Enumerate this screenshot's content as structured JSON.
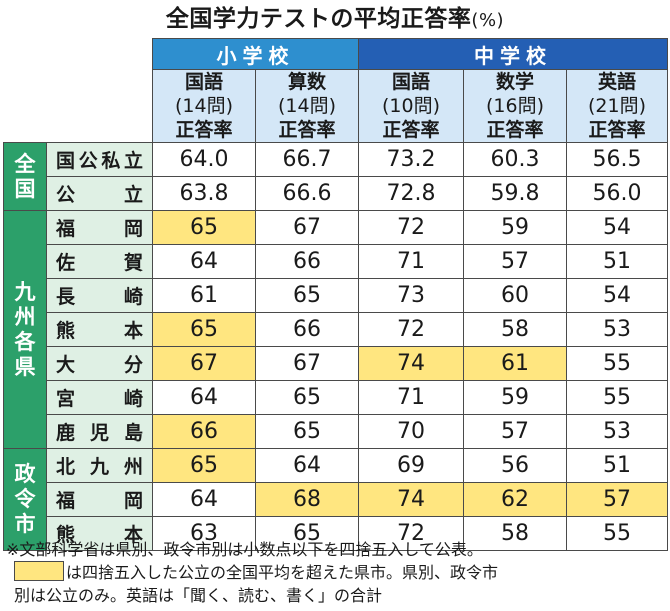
{
  "chart_data": {
    "type": "table",
    "title": "全国学力テストの平均正答率",
    "title_unit": "(%)",
    "level_headers": {
      "elementary": "小学校",
      "middle": "中学校"
    },
    "columns": [
      {
        "level": "小学校",
        "subject": "国語",
        "questions": "(14問)",
        "metric": "正答率"
      },
      {
        "level": "小学校",
        "subject": "算数",
        "questions": "(14問)",
        "metric": "正答率"
      },
      {
        "level": "中学校",
        "subject": "国語",
        "questions": "(10問)",
        "metric": "正答率"
      },
      {
        "level": "中学校",
        "subject": "数学",
        "questions": "(16問)",
        "metric": "正答率"
      },
      {
        "level": "中学校",
        "subject": "英語",
        "questions": "(21問)",
        "metric": "正答率"
      }
    ],
    "groups": [
      {
        "label": "全国",
        "rows": [
          {
            "name": "国公私立",
            "values": [
              "64.0",
              "66.7",
              "73.2",
              "60.3",
              "56.5"
            ],
            "highlight": [
              false,
              false,
              false,
              false,
              false
            ]
          },
          {
            "name": "公立",
            "values": [
              "63.8",
              "66.6",
              "72.8",
              "59.8",
              "56.0"
            ],
            "highlight": [
              false,
              false,
              false,
              false,
              false
            ]
          }
        ]
      },
      {
        "label": "九州各県",
        "rows": [
          {
            "name": "福岡",
            "values": [
              "65",
              "67",
              "72",
              "59",
              "54"
            ],
            "highlight": [
              true,
              false,
              false,
              false,
              false
            ]
          },
          {
            "name": "佐賀",
            "values": [
              "64",
              "66",
              "71",
              "57",
              "51"
            ],
            "highlight": [
              false,
              false,
              false,
              false,
              false
            ]
          },
          {
            "name": "長崎",
            "values": [
              "61",
              "65",
              "73",
              "60",
              "54"
            ],
            "highlight": [
              false,
              false,
              false,
              false,
              false
            ]
          },
          {
            "name": "熊本",
            "values": [
              "65",
              "66",
              "72",
              "58",
              "53"
            ],
            "highlight": [
              true,
              false,
              false,
              false,
              false
            ]
          },
          {
            "name": "大分",
            "values": [
              "67",
              "67",
              "74",
              "61",
              "55"
            ],
            "highlight": [
              true,
              false,
              true,
              true,
              false
            ]
          },
          {
            "name": "宮崎",
            "values": [
              "64",
              "65",
              "71",
              "59",
              "55"
            ],
            "highlight": [
              false,
              false,
              false,
              false,
              false
            ]
          },
          {
            "name": "鹿児島",
            "values": [
              "66",
              "65",
              "70",
              "57",
              "53"
            ],
            "highlight": [
              true,
              false,
              false,
              false,
              false
            ]
          }
        ]
      },
      {
        "label": "政令市",
        "rows": [
          {
            "name": "北九州",
            "values": [
              "65",
              "64",
              "69",
              "56",
              "51"
            ],
            "highlight": [
              true,
              false,
              false,
              false,
              false
            ]
          },
          {
            "name": "福岡",
            "values": [
              "64",
              "68",
              "74",
              "62",
              "57"
            ],
            "highlight": [
              false,
              true,
              true,
              true,
              true
            ]
          },
          {
            "name": "熊本",
            "values": [
              "63",
              "65",
              "72",
              "58",
              "55"
            ],
            "highlight": [
              false,
              false,
              false,
              false,
              false
            ]
          }
        ]
      }
    ],
    "highlight_color": "#ffe680"
  },
  "notes": {
    "line1": "※文部科学省は県別、政令市別は小数点以下を四捨五入して公表。",
    "line2": "は四捨五入した公立の全国平均を超えた県市。県別、政令市",
    "line3": "別は公立のみ。英語は「聞く、読む、書く」の合計"
  },
  "colors": {
    "elementary_header": "#2e8fcf",
    "middle_header": "#245fb4",
    "subject_header_bg": "#d4e7f7",
    "group_label_bg": "#2ca06a",
    "row_label_bg": "#dff0e4"
  }
}
